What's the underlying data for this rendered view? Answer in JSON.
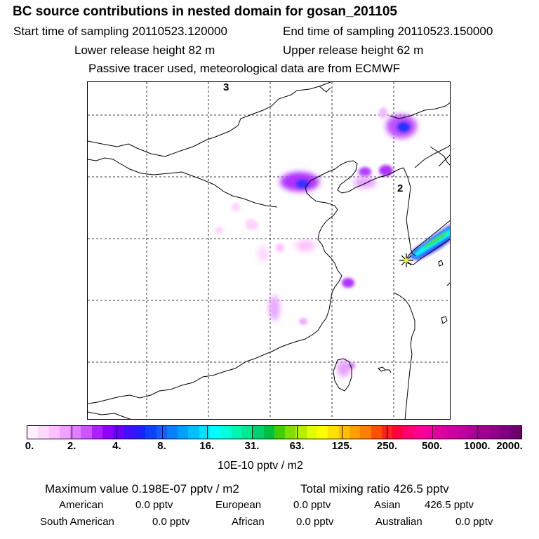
{
  "header": {
    "title": "BC  source contributions in nested domain for gosan_201105",
    "start_time": "Start time of sampling 20110523.120000",
    "end_time": "End time of sampling 20110523.150000",
    "lower_height": "Lower release height   82 m",
    "upper_height": "Upper release height   62 m",
    "note": "Passive tracer used, meteorological data are from ECMWF"
  },
  "map": {
    "grid_labels": [
      "3",
      "2"
    ]
  },
  "colorbar": {
    "colors": [
      "#fff0ff",
      "#ffd8ff",
      "#ffc0ff",
      "#f0a0ff",
      "#e080ff",
      "#cc55ff",
      "#b020ff",
      "#9000ff",
      "#6a00ff",
      "#4010ff",
      "#2020ff",
      "#1040ff",
      "#1060ff",
      "#0a80ff",
      "#00a0ff",
      "#00c0ff",
      "#00e0ff",
      "#00ffff",
      "#00ffdd",
      "#00f5b0",
      "#00e890",
      "#00d070",
      "#00c040",
      "#40d000",
      "#80e000",
      "#b0f000",
      "#e0ff00",
      "#ffff00",
      "#ffe000",
      "#ffc000",
      "#ffa000",
      "#ff8000",
      "#ff5000",
      "#ff2020",
      "#ff0040",
      "#ff0070",
      "#ff0090",
      "#f000a0",
      "#e000a0",
      "#d000a0",
      "#c000a0",
      "#b0009a",
      "#a00090",
      "#900088",
      "#800080",
      "#700070"
    ],
    "ticks": [
      "0.",
      "2.",
      "4.",
      "8.",
      "16.",
      "31.",
      "63.",
      "125.",
      "250.",
      "500.",
      "1000.",
      "2000."
    ],
    "units": "10E-10 pptv / m2"
  },
  "stats": {
    "max_value": "Maximum value  0.198E-07 pptv / m2",
    "total": "Total mixing ratio       426.5 pptv",
    "american_label": "American",
    "american_value": "0.0 pptv",
    "european_label": "European",
    "european_value": "0.0 pptv",
    "asian_label": "Asian",
    "asian_value": "426.5 pptv",
    "south_american_label": "South American",
    "south_american_value": "0.0 pptv",
    "african_label": "African",
    "african_value": "0.0 pptv",
    "australian_label": "Australian",
    "australian_value": "0.0 pptv"
  },
  "chart_data": {
    "type": "heatmap",
    "title": "BC  source contributions in nested domain for gosan_201105",
    "colorbar_levels": [
      0,
      2,
      4,
      8,
      16,
      31,
      63,
      125,
      250,
      500,
      1000,
      2000
    ],
    "colorbar_units": "10E-10 pptv / m2",
    "max_value": "0.198E-07 pptv / m2",
    "total_mixing_ratio_pptv": 426.5
  }
}
